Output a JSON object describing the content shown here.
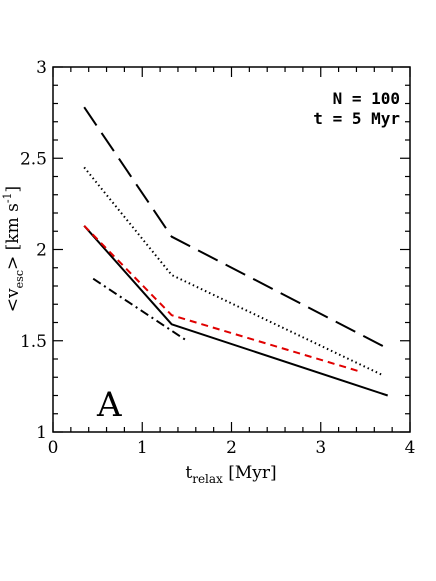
{
  "chart_data": {
    "type": "line",
    "x_axis": {
      "label_main": "t",
      "label_sub": "relax",
      "label_unit": " [Myr]",
      "range": [
        0,
        4
      ],
      "ticks": [
        "0",
        "1",
        "2",
        "3",
        "4"
      ]
    },
    "y_axis": {
      "label_open": "<v",
      "label_sub": "esc",
      "label_close": "> [km s",
      "label_sup": "-1",
      "label_end": "]",
      "range": [
        1,
        3
      ],
      "ticks": [
        "1",
        "1.5",
        "2",
        "2.5",
        "3"
      ]
    },
    "annotations": {
      "line1": "N = 100",
      "line2": "t = 5 Myr",
      "panel": "A"
    },
    "series": [
      {
        "style": "long-dash",
        "color": "#000000",
        "x": [
          0.35,
          1.33,
          3.7
        ],
        "y": [
          2.78,
          2.07,
          1.47
        ]
      },
      {
        "style": "dotted",
        "color": "#000000",
        "x": [
          0.35,
          1.33,
          3.7
        ],
        "y": [
          2.45,
          1.86,
          1.31
        ]
      },
      {
        "style": "solid",
        "color": "#000000",
        "x": [
          0.35,
          1.33,
          3.75
        ],
        "y": [
          2.13,
          1.59,
          1.2
        ]
      },
      {
        "style": "short-dash",
        "color": "#e00000",
        "x": [
          0.35,
          1.33,
          3.45
        ],
        "y": [
          2.13,
          1.64,
          1.33
        ]
      },
      {
        "style": "dot-dash",
        "color": "#000000",
        "x": [
          0.45,
          1.5
        ],
        "y": [
          1.84,
          1.5
        ]
      }
    ]
  }
}
